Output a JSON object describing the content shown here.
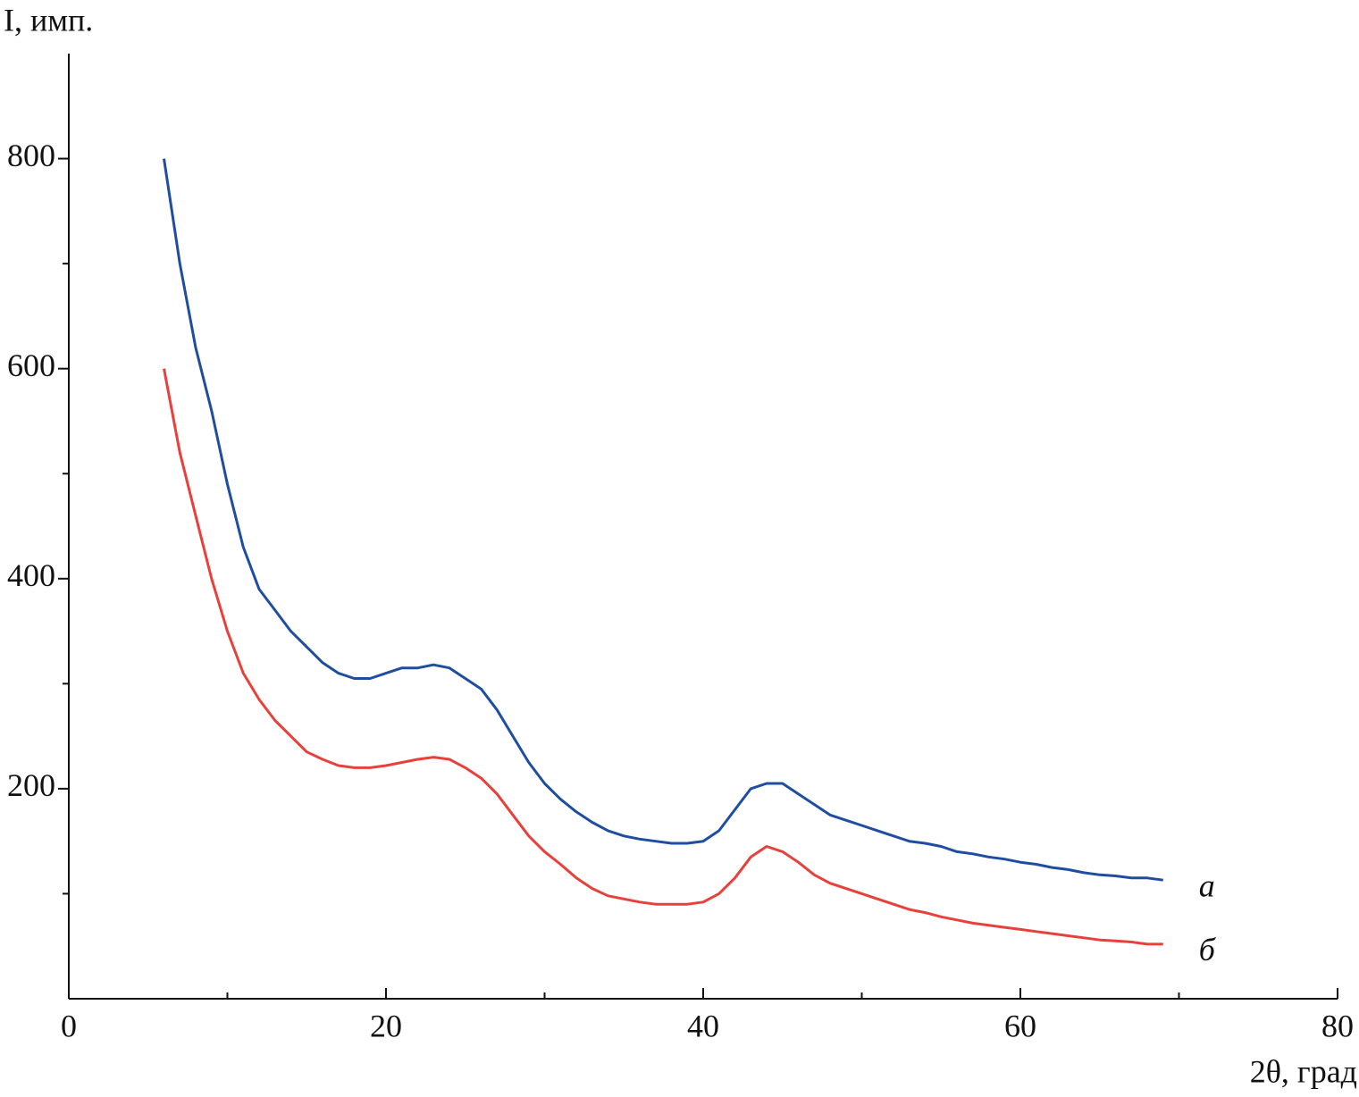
{
  "chart_data": {
    "type": "line",
    "xlabel": "2θ, град",
    "ylabel": "I, имп.",
    "x": [
      6,
      7,
      8,
      9,
      10,
      11,
      12,
      13,
      14,
      15,
      16,
      17,
      18,
      19,
      20,
      21,
      22,
      23,
      24,
      25,
      26,
      27,
      28,
      29,
      30,
      31,
      32,
      33,
      34,
      35,
      36,
      37,
      38,
      39,
      40,
      41,
      42,
      43,
      44,
      45,
      46,
      47,
      48,
      49,
      50,
      51,
      52,
      53,
      54,
      55,
      56,
      57,
      58,
      59,
      60,
      61,
      62,
      63,
      64,
      65,
      66,
      67,
      68,
      69
    ],
    "series": [
      {
        "name": "а",
        "color": "#1f4ea1",
        "values": [
          800,
          700,
          620,
          560,
          490,
          430,
          390,
          370,
          350,
          335,
          320,
          310,
          305,
          305,
          310,
          315,
          315,
          318,
          315,
          305,
          295,
          275,
          250,
          225,
          205,
          190,
          178,
          168,
          160,
          155,
          152,
          150,
          148,
          148,
          150,
          160,
          180,
          200,
          205,
          205,
          195,
          185,
          175,
          170,
          165,
          160,
          155,
          150,
          148,
          145,
          140,
          138,
          135,
          133,
          130,
          128,
          125,
          123,
          120,
          118,
          117,
          115,
          115,
          113
        ]
      },
      {
        "name": "б",
        "color": "#e8413c",
        "values": [
          600,
          520,
          460,
          400,
          350,
          310,
          285,
          265,
          250,
          235,
          228,
          222,
          220,
          220,
          222,
          225,
          228,
          230,
          228,
          220,
          210,
          195,
          175,
          155,
          140,
          128,
          115,
          105,
          98,
          95,
          92,
          90,
          90,
          90,
          92,
          100,
          115,
          135,
          145,
          140,
          130,
          118,
          110,
          105,
          100,
          95,
          90,
          85,
          82,
          78,
          75,
          72,
          70,
          68,
          66,
          64,
          62,
          60,
          58,
          56,
          55,
          54,
          52,
          52
        ]
      }
    ],
    "xlim": [
      0,
      80
    ],
    "xticks": [
      0,
      20,
      40,
      60,
      80
    ],
    "xminorticks": [
      10,
      30,
      50,
      70
    ],
    "ylim": [
      0,
      900
    ],
    "yticks": [
      200,
      400,
      600,
      800
    ],
    "yminorticks": [
      100,
      300,
      500,
      700
    ]
  }
}
